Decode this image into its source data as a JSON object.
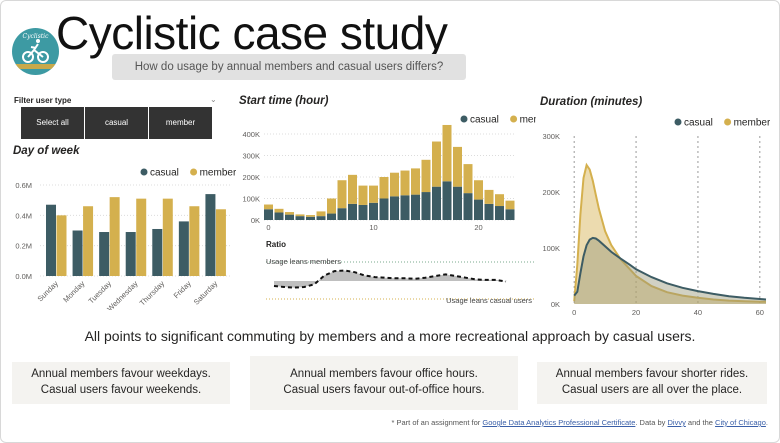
{
  "header": {
    "title": "Cyclistic case study",
    "subtitle": "How do usage by annual members and casual users differs?",
    "logo_text": "Cyclistic"
  },
  "filter": {
    "label": "Filter user type",
    "buttons": [
      "Select all",
      "casual",
      "member"
    ]
  },
  "colors": {
    "casual": "#3d5c64",
    "member": "#d4b04e"
  },
  "chart_data": [
    {
      "type": "bar",
      "title": "Day of week",
      "categories": [
        "Sunday",
        "Monday",
        "Tuesday",
        "Wednesday",
        "Thursday",
        "Friday",
        "Saturday"
      ],
      "series": [
        {
          "name": "casual",
          "values": [
            0.47,
            0.3,
            0.29,
            0.29,
            0.31,
            0.36,
            0.54
          ]
        },
        {
          "name": "member",
          "values": [
            0.4,
            0.46,
            0.52,
            0.51,
            0.51,
            0.46,
            0.44
          ]
        }
      ],
      "yticks": [
        "0.0M",
        "0.2M",
        "0.4M",
        "0.6M"
      ],
      "ylim": [
        0,
        0.6
      ],
      "legend": "top-right"
    },
    {
      "type": "bar",
      "title": "Start time (hour)",
      "stacked": true,
      "x": [
        0,
        1,
        2,
        3,
        4,
        5,
        6,
        7,
        8,
        9,
        10,
        11,
        12,
        13,
        14,
        15,
        16,
        17,
        18,
        19,
        20,
        21,
        22,
        23
      ],
      "series": [
        {
          "name": "casual",
          "values": [
            50,
            35,
            25,
            18,
            15,
            18,
            30,
            55,
            75,
            70,
            80,
            100,
            110,
            115,
            118,
            130,
            155,
            180,
            155,
            125,
            95,
            75,
            65,
            50
          ]
        },
        {
          "name": "member",
          "values": [
            22,
            17,
            12,
            8,
            8,
            22,
            70,
            130,
            135,
            90,
            80,
            100,
            110,
            115,
            122,
            150,
            210,
            262,
            185,
            135,
            90,
            65,
            55,
            40
          ]
        }
      ],
      "yticks": [
        "0K",
        "100K",
        "200K",
        "300K",
        "400K"
      ],
      "xticks": [
        "0",
        "10",
        "20"
      ],
      "ylim": [
        0,
        400000
      ],
      "legend": "top-right"
    },
    {
      "type": "line",
      "title": "Ratio",
      "annotations": [
        "Usage leans members",
        "Usage leans casual users"
      ],
      "series": [
        {
          "values": [
            0.45,
            0.55,
            0.6,
            0.55,
            0.3,
            -0.5,
            -0.9,
            -0.95,
            -0.8,
            -0.5,
            -0.35,
            -0.3,
            -0.25,
            -0.25,
            -0.2,
            -0.3,
            -0.45,
            -0.6,
            -0.45,
            -0.3,
            -0.15,
            -0.1,
            -0.1,
            0.05
          ]
        }
      ]
    },
    {
      "type": "area",
      "title": "Duration (minutes)",
      "xticks": [
        "0",
        "20",
        "40",
        "60"
      ],
      "yticks": [
        "0K",
        "100K",
        "200K",
        "300K"
      ],
      "ylim": [
        0,
        300000
      ],
      "xlim": [
        -2,
        62
      ],
      "series": [
        {
          "name": "casual",
          "x": [
            0,
            1,
            2,
            3,
            4,
            5,
            6,
            7,
            8,
            10,
            12,
            15,
            18,
            20,
            25,
            30,
            35,
            40,
            45,
            50,
            55,
            60,
            62
          ],
          "values": [
            15,
            22,
            55,
            85,
            105,
            115,
            118,
            117,
            113,
            103,
            93,
            81,
            70,
            62,
            48,
            37,
            29,
            23,
            18,
            14,
            11,
            9,
            8
          ]
        },
        {
          "name": "member",
          "x": [
            0,
            1,
            2,
            3,
            4,
            5,
            6,
            7,
            8,
            10,
            12,
            15,
            18,
            20,
            25,
            30,
            35,
            40,
            45,
            50,
            55,
            60,
            62
          ],
          "values": [
            5,
            70,
            160,
            225,
            248,
            240,
            220,
            195,
            170,
            130,
            105,
            80,
            62,
            50,
            32,
            21,
            15,
            11,
            8,
            6,
            5,
            4,
            4
          ]
        }
      ],
      "legend": "top-right"
    }
  ],
  "conclusion": "All points to significant commuting by members and a more recreational approach by casual users.",
  "cards": [
    [
      "Annual members favour weekdays.",
      "Casual users favour weekends."
    ],
    [
      "Annual members favour office hours.",
      "Casual users favour out-of-office hours."
    ],
    [
      "Annual members favour shorter rides.",
      "Casual users are all over the place."
    ]
  ],
  "footer": {
    "prefix": "* Part of an assignment for ",
    "link1": "Google Data Analytics Professional Certificate",
    "mid1": ". Data by ",
    "link2": "Divvy",
    "mid2": " and the ",
    "link3": "City of Chicago",
    "suffix": "."
  }
}
